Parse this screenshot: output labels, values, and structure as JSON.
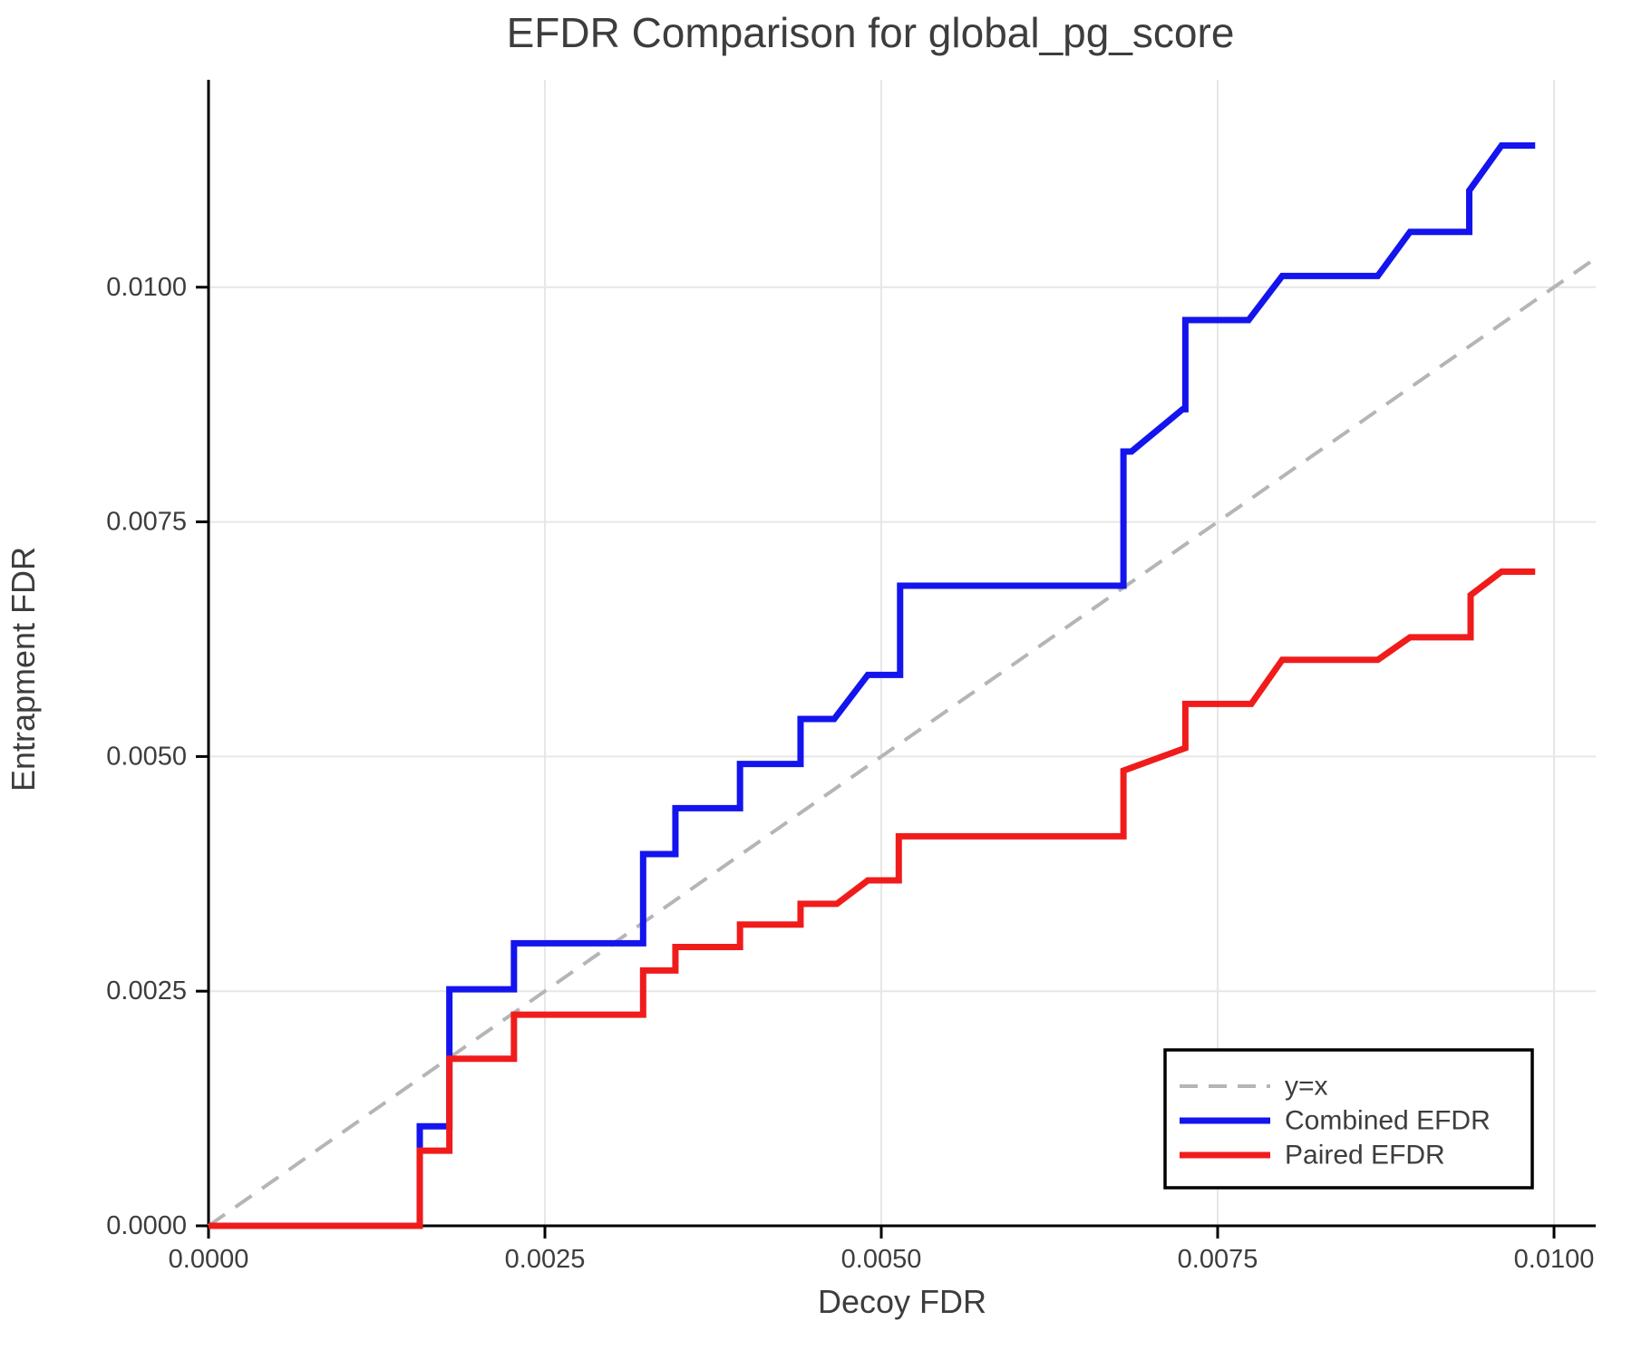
{
  "chart_data": {
    "type": "line",
    "title": "EFDR Comparison for global_pg_score",
    "xlabel": "Decoy FDR",
    "ylabel": "Entrapment FDR",
    "xlim": [
      0,
      0.01031
    ],
    "ylim": [
      0,
      0.01221
    ],
    "grid": true,
    "legend_position": "lower right",
    "axis_color": "#000000",
    "grid_color": "#e7e7e7",
    "text_color": "#3d3d3d",
    "x_ticks": {
      "values": [
        0,
        0.0025,
        0.005,
        0.0075,
        0.01
      ],
      "labels": [
        "0.0000",
        "0.0025",
        "0.0050",
        "0.0075",
        "0.0100"
      ]
    },
    "y_ticks": {
      "values": [
        0,
        0.0025,
        0.005,
        0.0075,
        0.01
      ],
      "labels": [
        "0.0000",
        "0.0025",
        "0.0050",
        "0.0075",
        "0.0100"
      ]
    },
    "series": [
      {
        "name": "y=x",
        "color": "#b5b5b5",
        "style": "dashed",
        "width": 4,
        "points": [
          [
            0,
            0
          ],
          [
            0.01031,
            0.01031
          ]
        ]
      },
      {
        "name": "Combined EFDR",
        "color": "#1414ee",
        "style": "solid",
        "width": 7,
        "points": [
          [
            0,
            0
          ],
          [
            0.00157,
            0
          ],
          [
            0.00157,
            0.00106
          ],
          [
            0.00179,
            0.00106
          ],
          [
            0.00179,
            0.00252
          ],
          [
            0.00227,
            0.00252
          ],
          [
            0.00227,
            0.00301
          ],
          [
            0.00323,
            0.00301
          ],
          [
            0.00323,
            0.00396
          ],
          [
            0.00347,
            0.00396
          ],
          [
            0.00347,
            0.00445
          ],
          [
            0.00395,
            0.00445
          ],
          [
            0.00395,
            0.00492
          ],
          [
            0.0044,
            0.00492
          ],
          [
            0.0044,
            0.0054
          ],
          [
            0.00465,
            0.0054
          ],
          [
            0.0049,
            0.00587
          ],
          [
            0.00514,
            0.00587
          ],
          [
            0.00514,
            0.00682
          ],
          [
            0.0068,
            0.00682
          ],
          [
            0.0068,
            0.00825
          ],
          [
            0.00686,
            0.00825
          ],
          [
            0.00724,
            0.0087
          ],
          [
            0.00726,
            0.0087
          ],
          [
            0.00726,
            0.00965
          ],
          [
            0.00773,
            0.00965
          ],
          [
            0.00798,
            0.01012
          ],
          [
            0.00869,
            0.01012
          ],
          [
            0.00893,
            0.01059
          ],
          [
            0.00937,
            0.01059
          ],
          [
            0.00937,
            0.01103
          ],
          [
            0.00961,
            0.01151
          ],
          [
            0.00986,
            0.01151
          ]
        ]
      },
      {
        "name": "Paired EFDR",
        "color": "#f01c1c",
        "style": "solid",
        "width": 7,
        "points": [
          [
            0,
            0
          ],
          [
            0.00157,
            0
          ],
          [
            0.00157,
            0.0008
          ],
          [
            0.00179,
            0.0008
          ],
          [
            0.00179,
            0.00178
          ],
          [
            0.00227,
            0.00178
          ],
          [
            0.00227,
            0.00225
          ],
          [
            0.00323,
            0.00225
          ],
          [
            0.00323,
            0.00272
          ],
          [
            0.00347,
            0.00272
          ],
          [
            0.00347,
            0.00297
          ],
          [
            0.00395,
            0.00297
          ],
          [
            0.00395,
            0.00321
          ],
          [
            0.0044,
            0.00321
          ],
          [
            0.0044,
            0.00343
          ],
          [
            0.00467,
            0.00343
          ],
          [
            0.0049,
            0.00368
          ],
          [
            0.00513,
            0.00368
          ],
          [
            0.00513,
            0.00415
          ],
          [
            0.0068,
            0.00415
          ],
          [
            0.0068,
            0.00485
          ],
          [
            0.00726,
            0.00509
          ],
          [
            0.00726,
            0.00556
          ],
          [
            0.00775,
            0.00556
          ],
          [
            0.00798,
            0.00603
          ],
          [
            0.00869,
            0.00603
          ],
          [
            0.00893,
            0.00627
          ],
          [
            0.00938,
            0.00627
          ],
          [
            0.00938,
            0.00672
          ],
          [
            0.00961,
            0.00697
          ],
          [
            0.00986,
            0.00697
          ]
        ]
      }
    ]
  }
}
